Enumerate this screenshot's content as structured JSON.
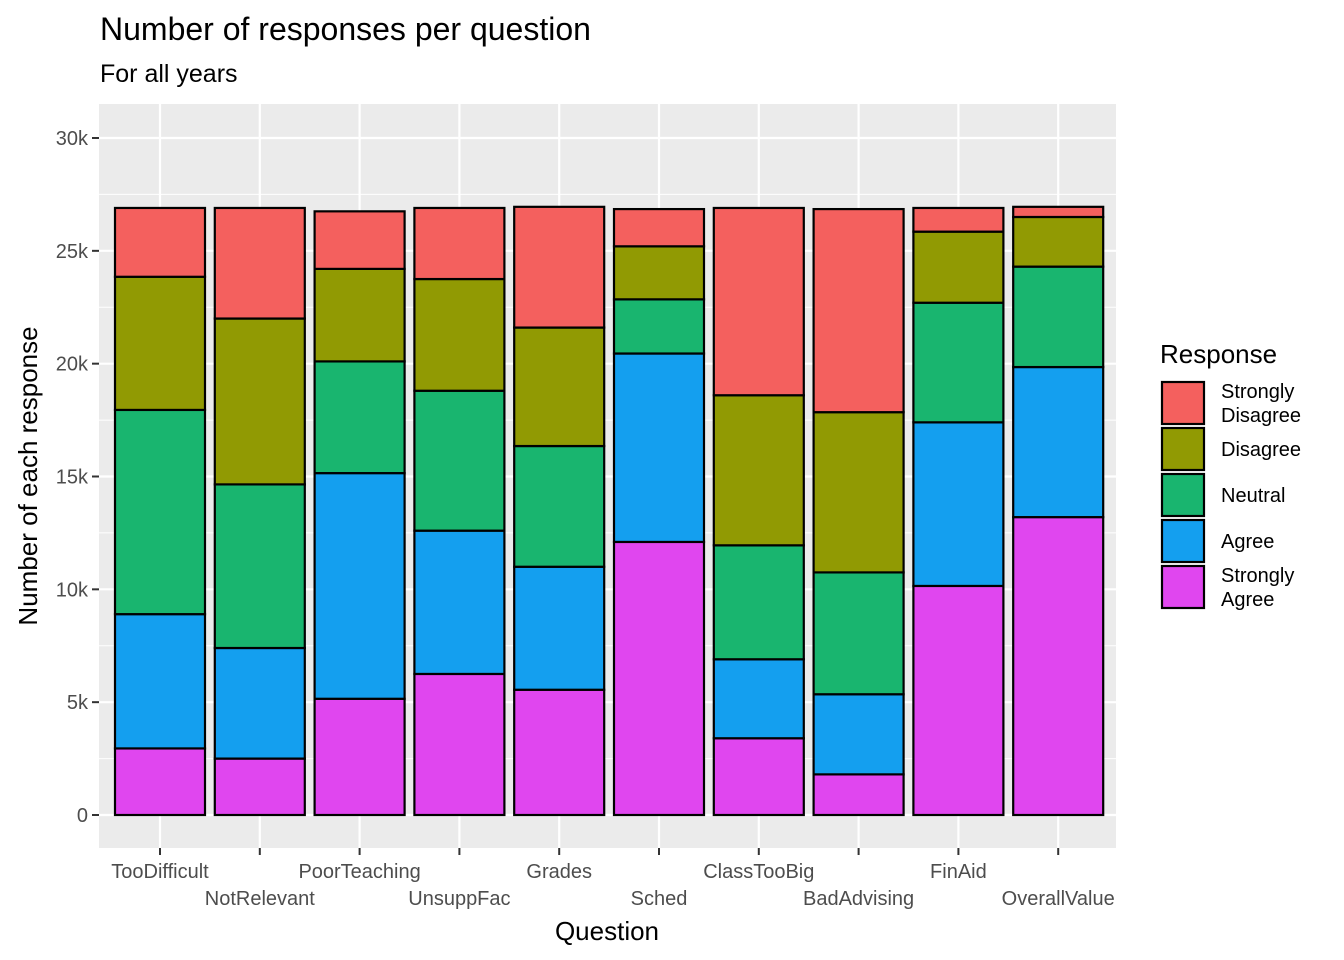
{
  "chart_data": {
    "type": "bar",
    "stacked": true,
    "title": "Number of responses per question",
    "subtitle": "For all years",
    "xlabel": "Question",
    "ylabel": "Number of each response",
    "ylim": [
      -1500,
      31000
    ],
    "yticks": [
      0,
      5000,
      10000,
      15000,
      20000,
      25000,
      30000
    ],
    "ytick_labels": [
      "0",
      "5k",
      "10k",
      "15k",
      "20k",
      "25k",
      "30k"
    ],
    "grid": true,
    "legend": {
      "title": "Response",
      "position": "right"
    },
    "categories": [
      "TooDifficult",
      "NotRelevant",
      "PoorTeaching",
      "UnsuppFac",
      "Grades",
      "Sched",
      "ClassTooBig",
      "BadAdvising",
      "FinAid",
      "OverallValue"
    ],
    "series": [
      {
        "name": "Strongly Agree",
        "label_lines": [
          "Strongly",
          "Agree"
        ],
        "color": "#E046EF",
        "values": [
          2950,
          2500,
          5150,
          6250,
          5550,
          12100,
          3400,
          1800,
          10150,
          13200
        ]
      },
      {
        "name": "Agree",
        "label_lines": [
          "Agree"
        ],
        "color": "#149FEF",
        "values": [
          5950,
          4900,
          10000,
          6350,
          5450,
          8350,
          3500,
          3550,
          7250,
          6650
        ]
      },
      {
        "name": "Neutral",
        "label_lines": [
          "Neutral"
        ],
        "color": "#19B56F",
        "values": [
          9050,
          7250,
          4950,
          6200,
          5350,
          2400,
          5050,
          5400,
          5300,
          4450
        ]
      },
      {
        "name": "Disagree",
        "label_lines": [
          "Disagree"
        ],
        "color": "#919A03",
        "values": [
          5900,
          7350,
          4100,
          4950,
          5250,
          2350,
          6650,
          7100,
          3150,
          2200
        ]
      },
      {
        "name": "Strongly Disagree",
        "label_lines": [
          "Strongly",
          "Disagree"
        ],
        "color": "#F4605E",
        "values": [
          3050,
          4900,
          2550,
          3150,
          5350,
          1650,
          8300,
          9000,
          1050,
          450
        ]
      }
    ]
  }
}
